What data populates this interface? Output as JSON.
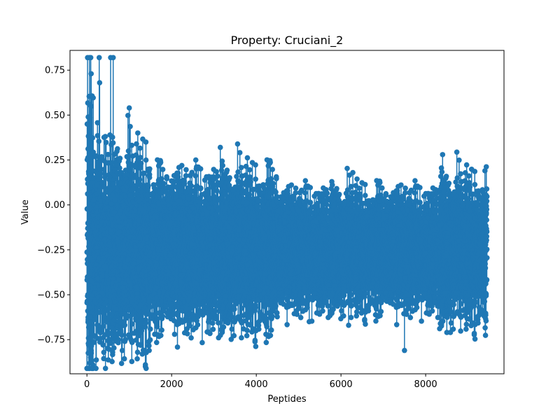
{
  "chart_data": {
    "type": "line",
    "title": "Property: Cruciani_2",
    "xlabel": "Peptides",
    "ylabel": "Value",
    "xlim": [
      -400,
      9850
    ],
    "ylim": [
      -0.94,
      0.86
    ],
    "xticks": [
      0,
      2000,
      4000,
      6000,
      8000
    ],
    "xtick_labels": [
      "0",
      "2000",
      "4000",
      "6000",
      "8000"
    ],
    "yticks": [
      -0.75,
      -0.5,
      -0.25,
      0.0,
      0.25,
      0.5,
      0.75
    ],
    "ytick_labels": [
      "−0.75",
      "−0.50",
      "−0.25",
      "0.00",
      "0.25",
      "0.50",
      "0.75"
    ],
    "grid": false,
    "legend": "none",
    "color": "#1f77b4",
    "marker": "circle",
    "series": [
      {
        "n_points": 9450,
        "x_range": [
          0,
          9449
        ],
        "y_min": -0.91,
        "y_max": 0.82,
        "typical_band": [
          -0.5,
          0.1
        ],
        "center": -0.25,
        "notable_points": [
          {
            "x": 0,
            "y": -0.91
          },
          {
            "x": 15,
            "y": 0.82
          },
          {
            "x": 40,
            "y": -0.78
          },
          {
            "x": 60,
            "y": 0.82
          },
          {
            "x": 90,
            "y": 0.82
          },
          {
            "x": 100,
            "y": 0.73
          },
          {
            "x": 140,
            "y": -0.89
          },
          {
            "x": 290,
            "y": 0.82
          },
          {
            "x": 300,
            "y": 0.68
          },
          {
            "x": 560,
            "y": 0.82
          },
          {
            "x": 570,
            "y": -0.77
          },
          {
            "x": 620,
            "y": 0.82
          },
          {
            "x": 680,
            "y": -0.72
          },
          {
            "x": 1000,
            "y": 0.54
          },
          {
            "x": 1600,
            "y": -0.72
          },
          {
            "x": 2070,
            "y": -0.72
          },
          {
            "x": 3150,
            "y": 0.32
          },
          {
            "x": 3700,
            "y": -0.69
          },
          {
            "x": 5250,
            "y": -0.65
          },
          {
            "x": 6180,
            "y": -0.67
          },
          {
            "x": 6280,
            "y": 0.18
          },
          {
            "x": 7500,
            "y": -0.81
          },
          {
            "x": 8400,
            "y": 0.28
          },
          {
            "x": 8500,
            "y": -0.71
          },
          {
            "x": 9400,
            "y": 0.19
          }
        ]
      }
    ]
  }
}
